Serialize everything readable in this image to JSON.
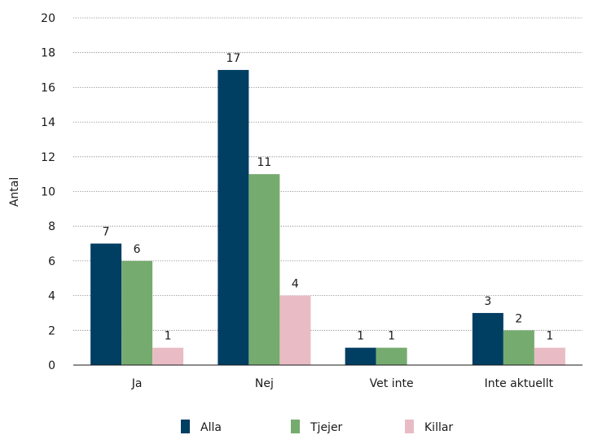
{
  "chart_data": {
    "type": "bar",
    "categories": [
      "Ja",
      "Nej",
      "Vet inte",
      "Inte aktuellt"
    ],
    "series": [
      {
        "name": "Alla",
        "values": [
          7,
          17,
          1,
          3
        ],
        "color": "#003e62"
      },
      {
        "name": "Tjejer",
        "values": [
          6,
          11,
          1,
          2
        ],
        "color": "#75ab6f"
      },
      {
        "name": "Killar",
        "values": [
          1,
          4,
          null,
          1
        ],
        "color": "#e9bcc5"
      }
    ],
    "ylabel": "Antal",
    "ylim": [
      0,
      20
    ],
    "yticks": [
      0,
      2,
      4,
      6,
      8,
      10,
      12,
      14,
      16,
      18,
      20
    ],
    "grid": true,
    "legend_position": "bottom"
  }
}
